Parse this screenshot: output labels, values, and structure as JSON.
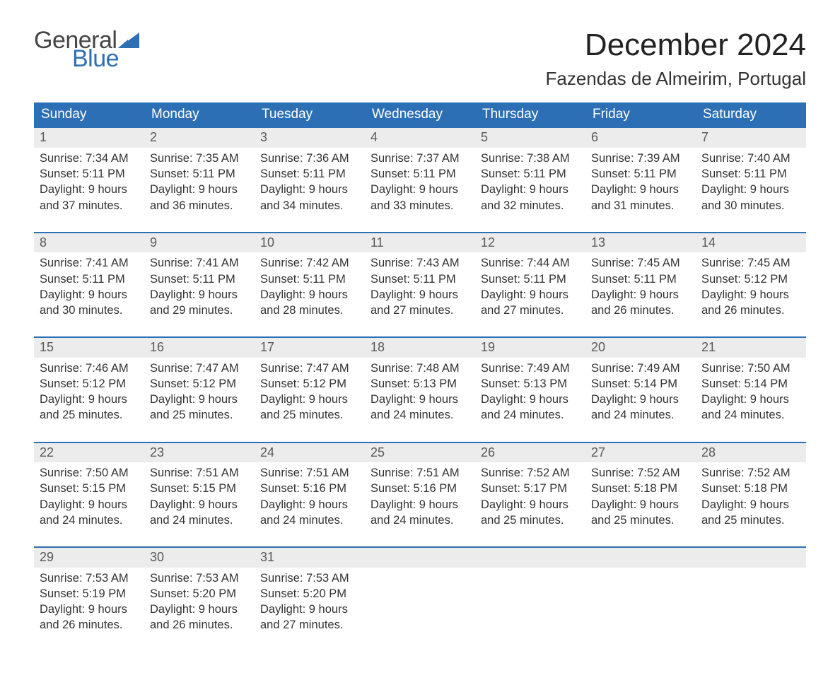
{
  "logo": {
    "word1": "General",
    "word2": "Blue"
  },
  "title": "December 2024",
  "location": "Fazendas de Almeirim, Portugal",
  "colors": {
    "accent": "#2d6fb5",
    "band": "#ececec",
    "text": "#333333",
    "bg": "#ffffff"
  },
  "daysOfWeek": [
    "Sunday",
    "Monday",
    "Tuesday",
    "Wednesday",
    "Thursday",
    "Friday",
    "Saturday"
  ],
  "weeks": [
    [
      {
        "n": "1",
        "sr": "7:34 AM",
        "ss": "5:11 PM",
        "dl": "9 hours and 37 minutes."
      },
      {
        "n": "2",
        "sr": "7:35 AM",
        "ss": "5:11 PM",
        "dl": "9 hours and 36 minutes."
      },
      {
        "n": "3",
        "sr": "7:36 AM",
        "ss": "5:11 PM",
        "dl": "9 hours and 34 minutes."
      },
      {
        "n": "4",
        "sr": "7:37 AM",
        "ss": "5:11 PM",
        "dl": "9 hours and 33 minutes."
      },
      {
        "n": "5",
        "sr": "7:38 AM",
        "ss": "5:11 PM",
        "dl": "9 hours and 32 minutes."
      },
      {
        "n": "6",
        "sr": "7:39 AM",
        "ss": "5:11 PM",
        "dl": "9 hours and 31 minutes."
      },
      {
        "n": "7",
        "sr": "7:40 AM",
        "ss": "5:11 PM",
        "dl": "9 hours and 30 minutes."
      }
    ],
    [
      {
        "n": "8",
        "sr": "7:41 AM",
        "ss": "5:11 PM",
        "dl": "9 hours and 30 minutes."
      },
      {
        "n": "9",
        "sr": "7:41 AM",
        "ss": "5:11 PM",
        "dl": "9 hours and 29 minutes."
      },
      {
        "n": "10",
        "sr": "7:42 AM",
        "ss": "5:11 PM",
        "dl": "9 hours and 28 minutes."
      },
      {
        "n": "11",
        "sr": "7:43 AM",
        "ss": "5:11 PM",
        "dl": "9 hours and 27 minutes."
      },
      {
        "n": "12",
        "sr": "7:44 AM",
        "ss": "5:11 PM",
        "dl": "9 hours and 27 minutes."
      },
      {
        "n": "13",
        "sr": "7:45 AM",
        "ss": "5:11 PM",
        "dl": "9 hours and 26 minutes."
      },
      {
        "n": "14",
        "sr": "7:45 AM",
        "ss": "5:12 PM",
        "dl": "9 hours and 26 minutes."
      }
    ],
    [
      {
        "n": "15",
        "sr": "7:46 AM",
        "ss": "5:12 PM",
        "dl": "9 hours and 25 minutes."
      },
      {
        "n": "16",
        "sr": "7:47 AM",
        "ss": "5:12 PM",
        "dl": "9 hours and 25 minutes."
      },
      {
        "n": "17",
        "sr": "7:47 AM",
        "ss": "5:12 PM",
        "dl": "9 hours and 25 minutes."
      },
      {
        "n": "18",
        "sr": "7:48 AM",
        "ss": "5:13 PM",
        "dl": "9 hours and 24 minutes."
      },
      {
        "n": "19",
        "sr": "7:49 AM",
        "ss": "5:13 PM",
        "dl": "9 hours and 24 minutes."
      },
      {
        "n": "20",
        "sr": "7:49 AM",
        "ss": "5:14 PM",
        "dl": "9 hours and 24 minutes."
      },
      {
        "n": "21",
        "sr": "7:50 AM",
        "ss": "5:14 PM",
        "dl": "9 hours and 24 minutes."
      }
    ],
    [
      {
        "n": "22",
        "sr": "7:50 AM",
        "ss": "5:15 PM",
        "dl": "9 hours and 24 minutes."
      },
      {
        "n": "23",
        "sr": "7:51 AM",
        "ss": "5:15 PM",
        "dl": "9 hours and 24 minutes."
      },
      {
        "n": "24",
        "sr": "7:51 AM",
        "ss": "5:16 PM",
        "dl": "9 hours and 24 minutes."
      },
      {
        "n": "25",
        "sr": "7:51 AM",
        "ss": "5:16 PM",
        "dl": "9 hours and 24 minutes."
      },
      {
        "n": "26",
        "sr": "7:52 AM",
        "ss": "5:17 PM",
        "dl": "9 hours and 25 minutes."
      },
      {
        "n": "27",
        "sr": "7:52 AM",
        "ss": "5:18 PM",
        "dl": "9 hours and 25 minutes."
      },
      {
        "n": "28",
        "sr": "7:52 AM",
        "ss": "5:18 PM",
        "dl": "9 hours and 25 minutes."
      }
    ],
    [
      {
        "n": "29",
        "sr": "7:53 AM",
        "ss": "5:19 PM",
        "dl": "9 hours and 26 minutes."
      },
      {
        "n": "30",
        "sr": "7:53 AM",
        "ss": "5:20 PM",
        "dl": "9 hours and 26 minutes."
      },
      {
        "n": "31",
        "sr": "7:53 AM",
        "ss": "5:20 PM",
        "dl": "9 hours and 27 minutes."
      },
      null,
      null,
      null,
      null
    ]
  ],
  "labels": {
    "sunrise": "Sunrise:",
    "sunset": "Sunset:",
    "daylight": "Daylight:"
  }
}
